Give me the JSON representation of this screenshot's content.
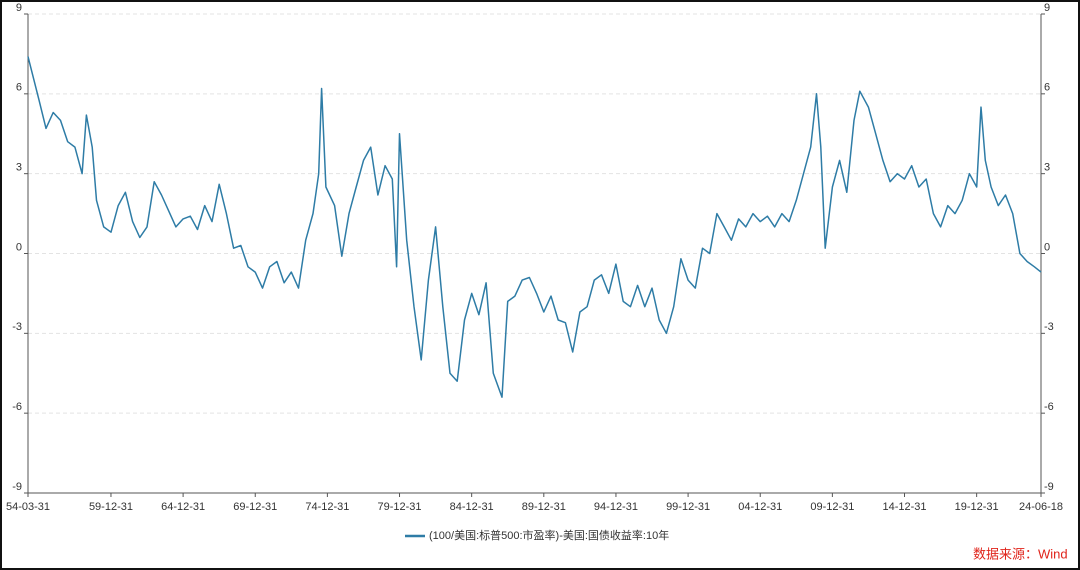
{
  "chart_data": {
    "type": "line",
    "xlim": [
      1954.25,
      2024.46
    ],
    "xticks": [
      {
        "value": 1954.25,
        "label": "54-03-31"
      },
      {
        "value": 1960,
        "label": "59-12-31"
      },
      {
        "value": 1965,
        "label": "64-12-31"
      },
      {
        "value": 1970,
        "label": "69-12-31"
      },
      {
        "value": 1975,
        "label": "74-12-31"
      },
      {
        "value": 1980,
        "label": "79-12-31"
      },
      {
        "value": 1985,
        "label": "84-12-31"
      },
      {
        "value": 1990,
        "label": "89-12-31"
      },
      {
        "value": 1995,
        "label": "94-12-31"
      },
      {
        "value": 2000,
        "label": "99-12-31"
      },
      {
        "value": 2005,
        "label": "04-12-31"
      },
      {
        "value": 2010,
        "label": "09-12-31"
      },
      {
        "value": 2015,
        "label": "14-12-31"
      },
      {
        "value": 2020,
        "label": "19-12-31"
      },
      {
        "value": 2024.46,
        "label": "24-06-18"
      }
    ],
    "ylim": [
      -9,
      9
    ],
    "yticks": [
      -9,
      -6,
      -3,
      0,
      3,
      6,
      9
    ],
    "y2lim": [
      -9,
      9
    ],
    "y2ticks": [
      -9,
      -6,
      -3,
      0,
      3,
      6,
      9
    ],
    "grid": true,
    "x": [
      1954.25,
      1955,
      1955.5,
      1956,
      1956.5,
      1957,
      1957.5,
      1958,
      1958.3,
      1958.7,
      1959,
      1959.5,
      1960,
      1960.5,
      1961,
      1961.5,
      1962,
      1962.5,
      1963,
      1963.5,
      1964,
      1964.5,
      1965,
      1965.5,
      1966,
      1966.5,
      1967,
      1967.5,
      1968,
      1968.5,
      1969,
      1969.5,
      1970,
      1970.5,
      1971,
      1971.5,
      1972,
      1972.5,
      1973,
      1973.5,
      1974,
      1974.4,
      1974.6,
      1974.9,
      1975.5,
      1976,
      1976.5,
      1977,
      1977.5,
      1978,
      1978.5,
      1979,
      1979.5,
      1979.8,
      1980,
      1980.5,
      1981,
      1981.5,
      1982,
      1982.5,
      1983,
      1983.5,
      1984,
      1984.5,
      1985,
      1985.5,
      1986,
      1986.5,
      1987.1,
      1987.5,
      1988,
      1988.5,
      1989,
      1989.5,
      1990,
      1990.5,
      1991,
      1991.5,
      1992,
      1992.5,
      1993,
      1993.5,
      1994,
      1994.5,
      1995,
      1995.5,
      1996,
      1996.5,
      1997,
      1997.5,
      1998,
      1998.5,
      1999,
      1999.5,
      2000,
      2000.5,
      2001,
      2001.5,
      2002,
      2002.5,
      2003,
      2003.5,
      2004,
      2004.5,
      2005,
      2005.5,
      2006,
      2006.5,
      2007,
      2007.5,
      2008,
      2008.5,
      2008.9,
      2009.2,
      2009.5,
      2010,
      2010.5,
      2011,
      2011.5,
      2011.9,
      2012.5,
      2013,
      2013.5,
      2014,
      2014.5,
      2015,
      2015.5,
      2016,
      2016.5,
      2017,
      2017.5,
      2018,
      2018.5,
      2019,
      2019.5,
      2020,
      2020.3,
      2020.6,
      2021,
      2021.5,
      2022,
      2022.5,
      2023,
      2023.5,
      2024,
      2024.46
    ],
    "series": [
      {
        "name": "(100/美国:标普500:市盈率)-美国:国债收益率:10年",
        "color": "#2e7ca6",
        "values": [
          7.4,
          5.8,
          4.7,
          5.3,
          5.0,
          4.2,
          4.0,
          3.0,
          5.2,
          4.0,
          2.0,
          1.0,
          0.8,
          1.8,
          2.3,
          1.2,
          0.6,
          1.0,
          2.7,
          2.2,
          1.6,
          1.0,
          1.3,
          1.4,
          0.9,
          1.8,
          1.2,
          2.6,
          1.5,
          0.2,
          0.3,
          -0.5,
          -0.7,
          -1.3,
          -0.5,
          -0.3,
          -1.1,
          -0.7,
          -1.3,
          0.5,
          1.5,
          3.0,
          6.2,
          2.5,
          1.8,
          -0.1,
          1.5,
          2.5,
          3.5,
          4.0,
          2.2,
          3.3,
          2.8,
          -0.5,
          4.5,
          0.5,
          -2.0,
          -4.0,
          -1.0,
          1.0,
          -2.0,
          -4.5,
          -4.8,
          -2.5,
          -1.5,
          -2.3,
          -1.1,
          -4.5,
          -5.4,
          -1.8,
          -1.6,
          -1.0,
          -0.9,
          -1.5,
          -2.2,
          -1.6,
          -2.5,
          -2.6,
          -3.7,
          -2.2,
          -2.0,
          -1.0,
          -0.8,
          -1.5,
          -0.4,
          -1.8,
          -2.0,
          -1.2,
          -2.0,
          -1.3,
          -2.5,
          -3.0,
          -2.0,
          -0.2,
          -1.0,
          -1.3,
          0.2,
          0.0,
          1.5,
          1.0,
          0.5,
          1.3,
          1.0,
          1.5,
          1.2,
          1.4,
          1.0,
          1.5,
          1.2,
          2.0,
          3.0,
          4.0,
          6.0,
          4.0,
          0.2,
          2.5,
          3.5,
          2.3,
          5.0,
          6.1,
          5.5,
          4.5,
          3.5,
          2.7,
          3.0,
          2.8,
          3.3,
          2.5,
          2.8,
          1.5,
          1.0,
          1.8,
          1.5,
          2.0,
          3.0,
          2.5,
          5.5,
          3.5,
          2.5,
          1.8,
          2.2,
          1.5,
          0.0,
          -0.3,
          -0.5,
          -0.7
        ]
      }
    ],
    "source": "数据来源：Wind"
  }
}
